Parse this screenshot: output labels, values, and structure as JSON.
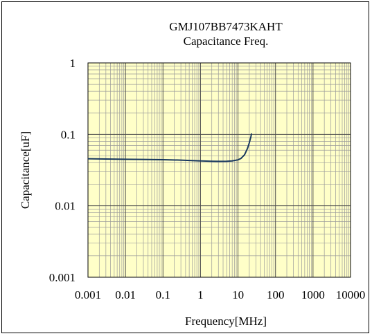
{
  "chart_data": {
    "type": "line",
    "title": "GMJ107BB7473KAHT",
    "subtitle": "Capacitance Freq.",
    "xlabel": "Frequency[MHz]",
    "ylabel": "Capacitance[uF]",
    "x_scale": "log",
    "y_scale": "log",
    "xlim": [
      0.001,
      10000
    ],
    "ylim": [
      0.001,
      1
    ],
    "x_ticks": [
      "0.001",
      "0.01",
      "0.1",
      "1",
      "10",
      "100",
      "1000",
      "10000"
    ],
    "y_ticks": [
      "1",
      "0.1",
      "0.01",
      "0.001"
    ],
    "grid": true,
    "legend": "none",
    "series": [
      {
        "color": "#17375e",
        "x": [
          0.001,
          0.003,
          0.01,
          0.03,
          0.1,
          0.3,
          1,
          2,
          3,
          5,
          7,
          10,
          12,
          15,
          18,
          20,
          22,
          23
        ],
        "y": [
          0.0455,
          0.0452,
          0.0448,
          0.0445,
          0.0442,
          0.0436,
          0.0425,
          0.042,
          0.0419,
          0.042,
          0.0425,
          0.044,
          0.046,
          0.052,
          0.064,
          0.076,
          0.092,
          0.103
        ]
      }
    ],
    "colors": {
      "plot_background": "#ffffc8",
      "major_grid": "#4d4d4d",
      "minor_grid": "#9a9a9a",
      "line": "#17375e"
    }
  }
}
